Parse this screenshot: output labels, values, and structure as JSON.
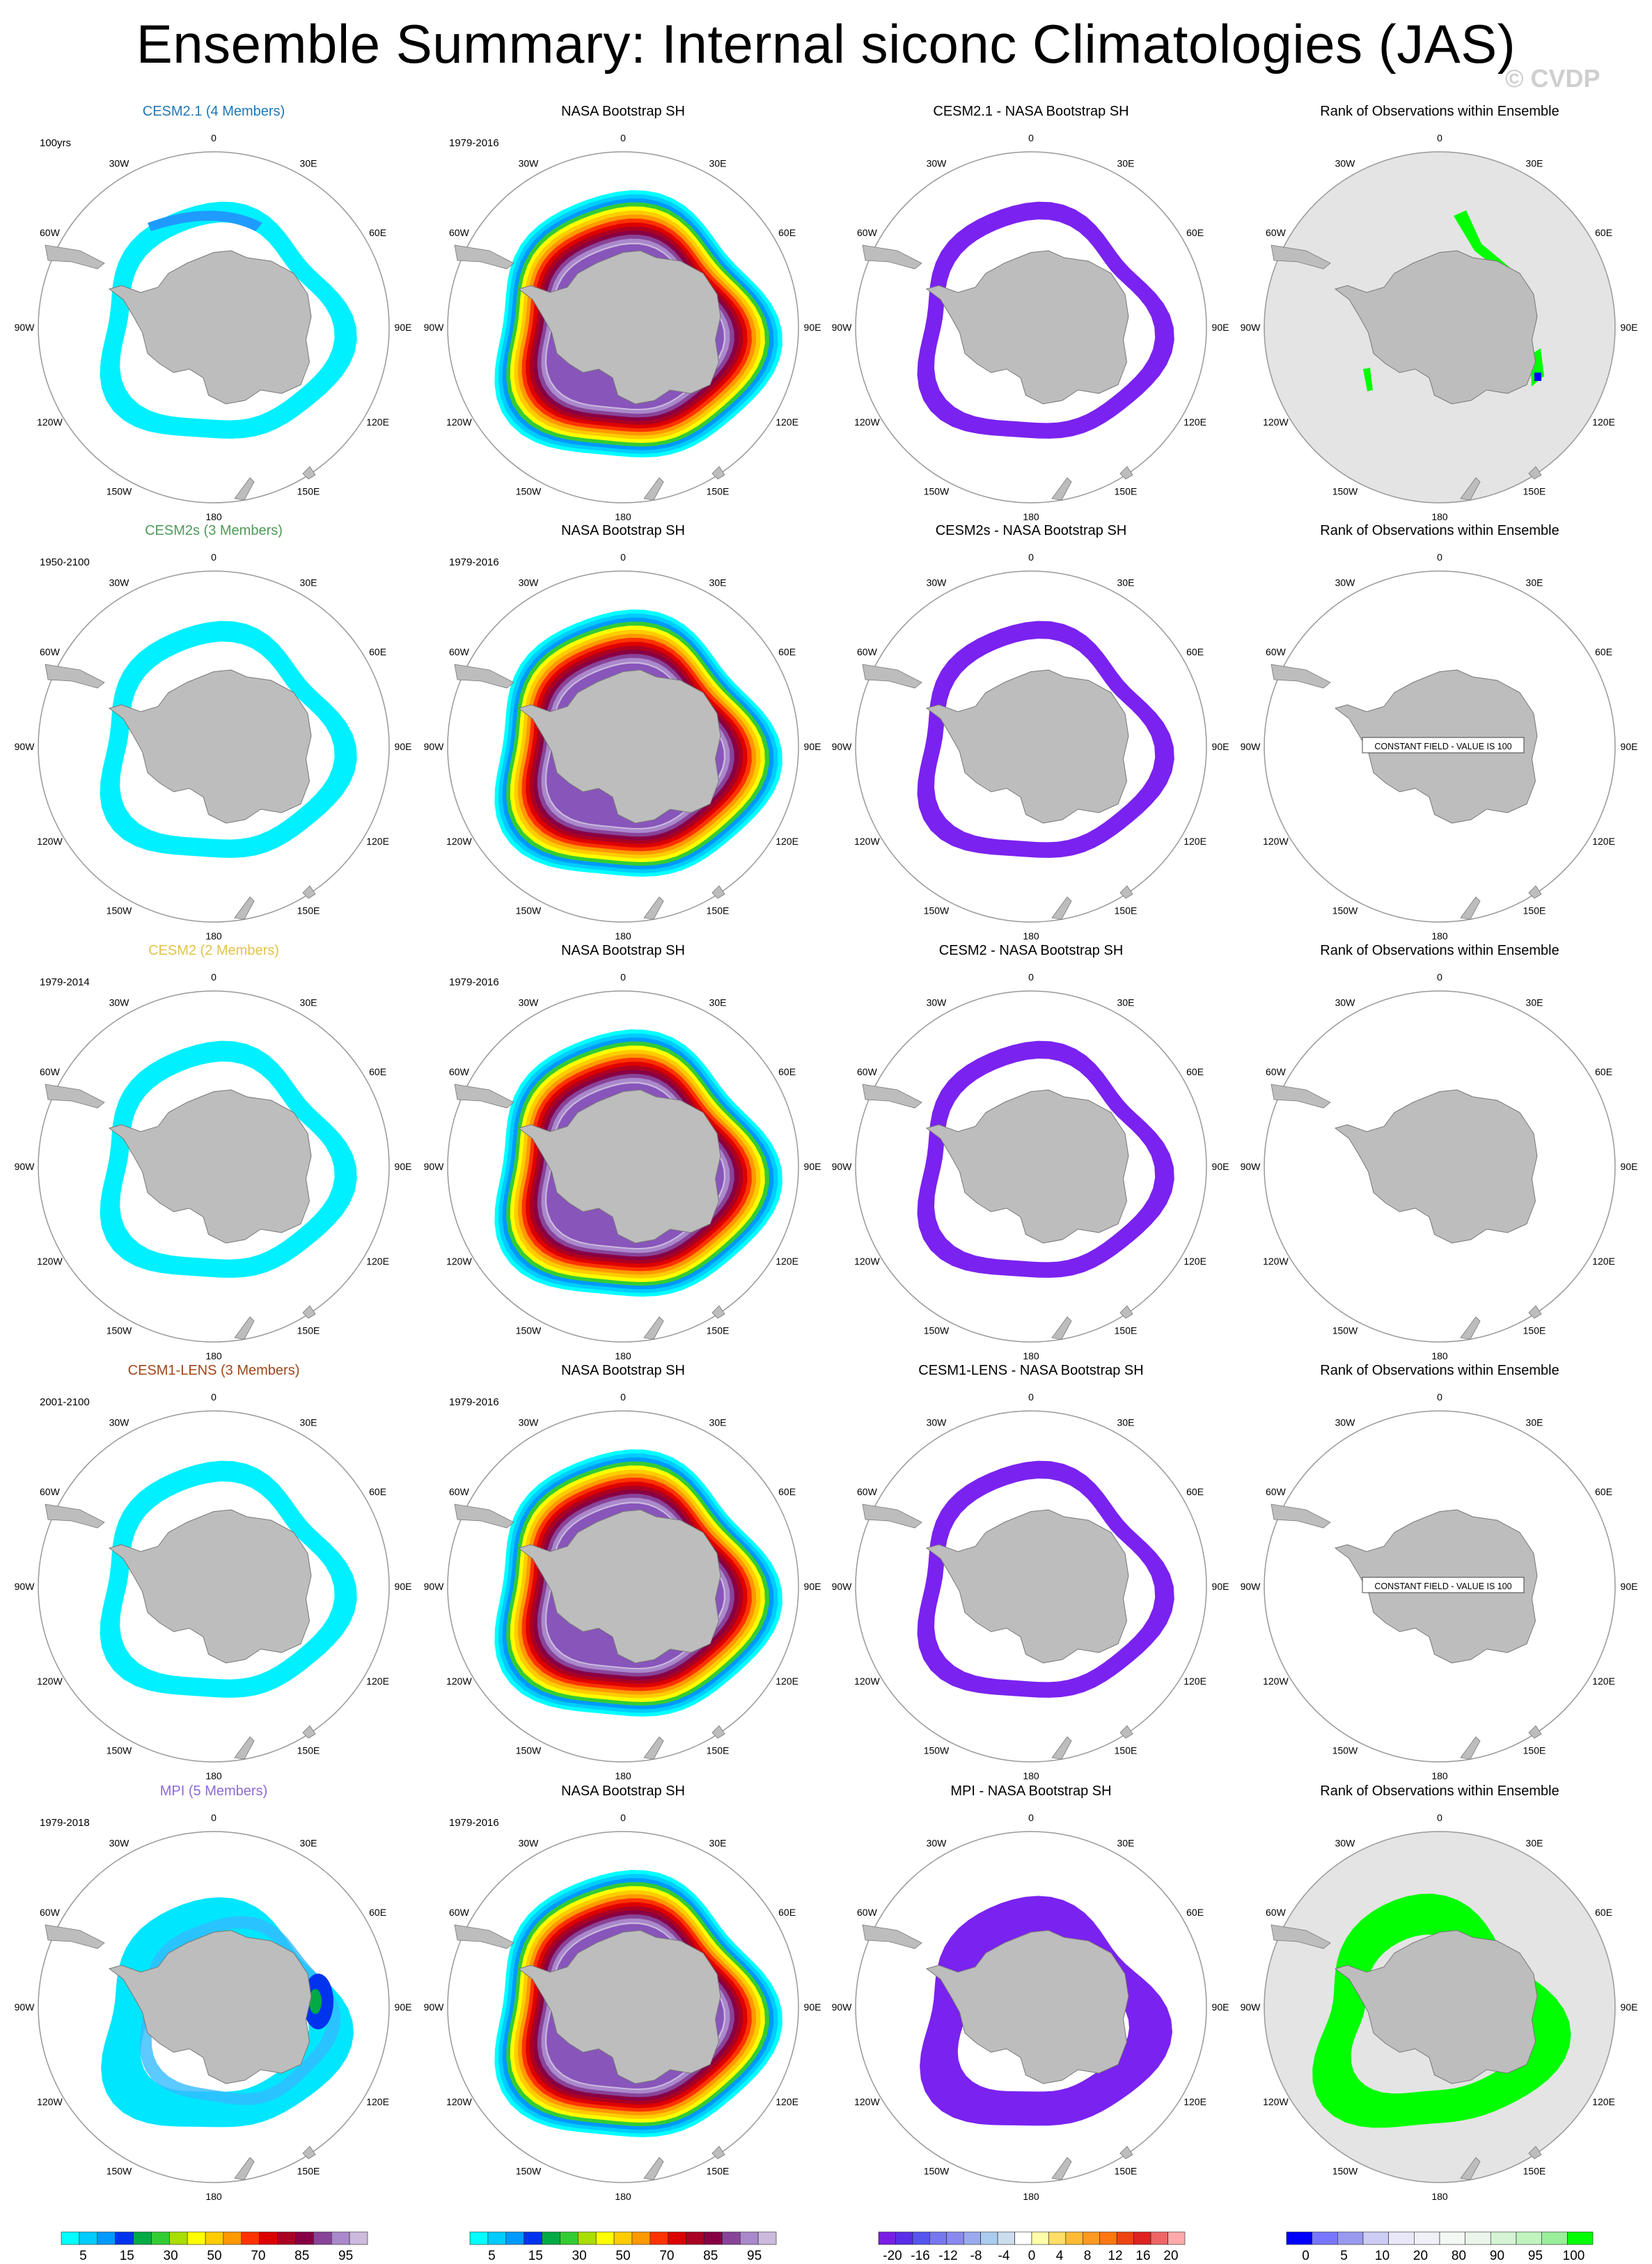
{
  "title": "Ensemble Summary: Internal siconc Climatologies (JAS)",
  "watermark": "© CVDP",
  "colors": {
    "cesm21": "#1f77b4",
    "cesm2s": "#4f9a5a",
    "cesm2": "#e2c34a",
    "cesm1lens": "#a0451a",
    "mpi": "#8c6ad6",
    "land": "#bdbdbd",
    "rank_background": "#e4e4e4"
  },
  "lon_labels": [
    "0",
    "30E",
    "60E",
    "90E",
    "120E",
    "150E",
    "180",
    "150W",
    "120W",
    "90W",
    "60W",
    "30W"
  ],
  "rows": [
    {
      "model": {
        "title": "CESM2.1 (4 Members)",
        "period": "100yrs",
        "title_color": "#1f77b4",
        "pattern": "thin-ring-cyan"
      },
      "obs": {
        "title": "NASA Bootstrap SH",
        "period": "1979-2016"
      },
      "diff": {
        "title": "CESM2.1 - NASA Bootstrap SH",
        "pattern": "purple-ring"
      },
      "rank": {
        "title": "Rank of Observations within Ensemble",
        "pattern": "grey-disk-green-patches"
      }
    },
    {
      "model": {
        "title": "CESM2s (3 Members)",
        "period": "1950-2100",
        "title_color": "#4f9a5a",
        "pattern": "thin-ring-cyan"
      },
      "obs": {
        "title": "NASA Bootstrap SH",
        "period": "1979-2016"
      },
      "diff": {
        "title": "CESM2s - NASA Bootstrap SH",
        "pattern": "purple-ring"
      },
      "rank": {
        "title": "Rank of Observations within Ensemble",
        "pattern": "constant",
        "constant_label": "CONSTANT FIELD - VALUE IS 100"
      }
    },
    {
      "model": {
        "title": "CESM2 (2 Members)",
        "period": "1979-2014",
        "title_color": "#e2c34a",
        "pattern": "thin-ring-cyan"
      },
      "obs": {
        "title": "NASA Bootstrap SH",
        "period": "1979-2016"
      },
      "diff": {
        "title": "CESM2 - NASA Bootstrap SH",
        "pattern": "purple-ring"
      },
      "rank": {
        "title": "Rank of Observations within Ensemble",
        "pattern": "empty"
      }
    },
    {
      "model": {
        "title": "CESM1-LENS (3 Members)",
        "period": "2001-2100",
        "title_color": "#a0451a",
        "pattern": "thin-ring-cyan"
      },
      "obs": {
        "title": "NASA Bootstrap SH",
        "period": "1979-2016"
      },
      "diff": {
        "title": "CESM1-LENS - NASA Bootstrap SH",
        "pattern": "purple-ring"
      },
      "rank": {
        "title": "Rank of Observations within Ensemble",
        "pattern": "constant",
        "constant_label": "CONSTANT FIELD - VALUE IS 100"
      }
    },
    {
      "model": {
        "title": "MPI (5 Members)",
        "period": "1979-2018",
        "title_color": "#8c6ad6",
        "pattern": "wide-ring-cyan-blue"
      },
      "obs": {
        "title": "NASA Bootstrap SH",
        "period": "1979-2016"
      },
      "diff": {
        "title": "MPI - NASA Bootstrap SH",
        "pattern": "wide-purple-ring"
      },
      "rank": {
        "title": "Rank of Observations within Ensemble",
        "pattern": "grey-disk-green-wide"
      }
    }
  ],
  "colorbars": [
    {
      "unit": "%",
      "colors": [
        "#00ffff",
        "#00ccff",
        "#0099ff",
        "#0033ee",
        "#00aa44",
        "#33cc33",
        "#aadd00",
        "#ffff00",
        "#ffcc00",
        "#ff9900",
        "#ff3300",
        "#dd0000",
        "#aa0022",
        "#880044",
        "#884499",
        "#aa88cc",
        "#ccbbdd"
      ],
      "tick_labels": [
        "5",
        "15",
        "30",
        "50",
        "70",
        "85",
        "95"
      ]
    },
    {
      "unit": "%",
      "colors": [
        "#00ffff",
        "#00ccff",
        "#0099ff",
        "#0033ee",
        "#00aa44",
        "#33cc33",
        "#aadd00",
        "#ffff00",
        "#ffcc00",
        "#ff9900",
        "#ff3300",
        "#dd0000",
        "#aa0022",
        "#880044",
        "#884499",
        "#aa88cc",
        "#ccbbdd"
      ],
      "tick_labels": [
        "5",
        "15",
        "30",
        "50",
        "70",
        "85",
        "95"
      ]
    },
    {
      "unit": "%",
      "colors": [
        "#7a1ee6",
        "#5a2ee8",
        "#5555ee",
        "#7777ee",
        "#8a8aee",
        "#99aaee",
        "#aaccee",
        "#ccddee",
        "#ffffff",
        "#ffffaa",
        "#ffdd66",
        "#ffbb33",
        "#ff9922",
        "#ff7711",
        "#ee4411",
        "#dd2222",
        "#ee6666",
        "#ffaaaa"
      ],
      "tick_labels": [
        "-20",
        "-16",
        "-12",
        "-8",
        "-4",
        "0",
        "4",
        "8",
        "12",
        "16",
        "20"
      ]
    },
    {
      "unit": "%",
      "colors": [
        "#0000ff",
        "#7777ff",
        "#9999ee",
        "#ccccf4",
        "#e8e8f8",
        "#f0f0f8",
        "#f4f8f4",
        "#eaf6ea",
        "#d4f4d4",
        "#bff4bf",
        "#99ee99",
        "#00ff00"
      ],
      "tick_labels": [
        "0",
        "5",
        "10",
        "20",
        "80",
        "90",
        "95",
        "100"
      ]
    }
  ]
}
